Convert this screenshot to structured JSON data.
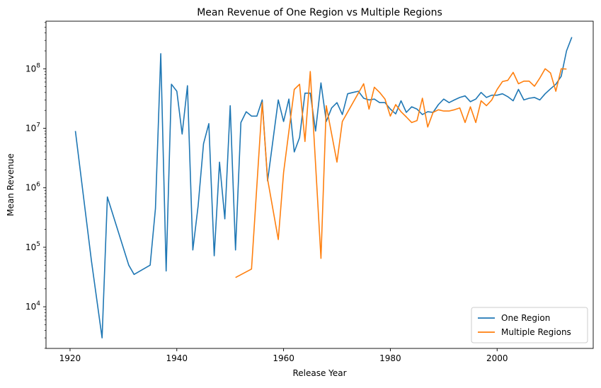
{
  "chart_data": {
    "type": "line",
    "title": "Mean Revenue of One Region vs Multiple Regions",
    "xlabel": "Release Year",
    "ylabel": "Mean Revenue",
    "xlim": [
      1915.5,
      2018
    ],
    "ylim_log10": [
      3.3,
      8.8
    ],
    "yscale": "log",
    "x_ticks": [
      1920,
      1940,
      1960,
      1980,
      2000
    ],
    "y_ticks": [
      {
        "exp": 4,
        "label": "4"
      },
      {
        "exp": 5,
        "label": "5"
      },
      {
        "exp": 6,
        "label": "6"
      },
      {
        "exp": 7,
        "label": "7"
      },
      {
        "exp": 8,
        "label": "8"
      }
    ],
    "y_tick_base": "10",
    "grid": false,
    "legend_position": "lower-right",
    "series": [
      {
        "name": "One Region",
        "color": "#1f77b4",
        "points": [
          [
            1921,
            9000000
          ],
          [
            1924,
            60000
          ],
          [
            1926,
            3000
          ],
          [
            1927,
            700000
          ],
          [
            1931,
            50000
          ],
          [
            1932,
            35000
          ],
          [
            1935,
            50000
          ],
          [
            1936,
            450000
          ],
          [
            1937,
            180000000
          ],
          [
            1938,
            40000
          ],
          [
            1939,
            55000000
          ],
          [
            1940,
            42000000
          ],
          [
            1941,
            8000000
          ],
          [
            1942,
            52000000
          ],
          [
            1943,
            90000
          ],
          [
            1944,
            500000
          ],
          [
            1945,
            5500000
          ],
          [
            1946,
            12000000
          ],
          [
            1947,
            72000
          ],
          [
            1948,
            2700000
          ],
          [
            1949,
            300000
          ],
          [
            1950,
            24000000
          ],
          [
            1951,
            90000
          ],
          [
            1952,
            12500000
          ],
          [
            1953,
            19000000
          ],
          [
            1954,
            16000000
          ],
          [
            1955,
            16000000
          ],
          [
            1956,
            30000000
          ],
          [
            1957,
            1300000
          ],
          [
            1959,
            30000000
          ],
          [
            1960,
            13000000
          ],
          [
            1961,
            31000000
          ],
          [
            1962,
            4000000
          ],
          [
            1963,
            7000000
          ],
          [
            1964,
            39000000
          ],
          [
            1965,
            39000000
          ],
          [
            1966,
            9000000
          ],
          [
            1967,
            58000000
          ],
          [
            1968,
            13000000
          ],
          [
            1969,
            22000000
          ],
          [
            1970,
            27000000
          ],
          [
            1971,
            17000000
          ],
          [
            1972,
            38000000
          ],
          [
            1973,
            40000000
          ],
          [
            1974,
            42000000
          ],
          [
            1975,
            32000000
          ],
          [
            1976,
            30000000
          ],
          [
            1977,
            31000000
          ],
          [
            1978,
            27000000
          ],
          [
            1979,
            27000000
          ],
          [
            1980,
            21000000
          ],
          [
            1981,
            17500000
          ],
          [
            1982,
            29000000
          ],
          [
            1983,
            18500000
          ],
          [
            1984,
            23000000
          ],
          [
            1985,
            21000000
          ],
          [
            1986,
            17000000
          ],
          [
            1987,
            19000000
          ],
          [
            1988,
            18500000
          ],
          [
            1989,
            25000000
          ],
          [
            1990,
            31000000
          ],
          [
            1991,
            27000000
          ],
          [
            1992,
            30000000
          ],
          [
            1993,
            33000000
          ],
          [
            1994,
            35000000
          ],
          [
            1995,
            28000000
          ],
          [
            1996,
            31000000
          ],
          [
            1997,
            40000000
          ],
          [
            1998,
            33000000
          ],
          [
            1999,
            36000000
          ],
          [
            2000,
            36000000
          ],
          [
            2001,
            38000000
          ],
          [
            2002,
            34000000
          ],
          [
            2003,
            29000000
          ],
          [
            2004,
            45000000
          ],
          [
            2005,
            30000000
          ],
          [
            2006,
            32000000
          ],
          [
            2007,
            33000000
          ],
          [
            2008,
            30000000
          ],
          [
            2009,
            38000000
          ],
          [
            2010,
            46000000
          ],
          [
            2011,
            55000000
          ],
          [
            2012,
            75000000
          ],
          [
            2013,
            200000000
          ],
          [
            2014,
            340000000
          ]
        ]
      },
      {
        "name": "Multiple Regions",
        "color": "#ff7f0e",
        "points": [
          [
            1951,
            31000
          ],
          [
            1954,
            43000
          ],
          [
            1956,
            27000000
          ],
          [
            1957,
            1400000
          ],
          [
            1959,
            135000
          ],
          [
            1960,
            1800000
          ],
          [
            1962,
            45000000
          ],
          [
            1963,
            55000000
          ],
          [
            1964,
            6000000
          ],
          [
            1965,
            90000000
          ],
          [
            1967,
            65000
          ],
          [
            1968,
            24000000
          ],
          [
            1970,
            2700000
          ],
          [
            1971,
            13000000
          ],
          [
            1975,
            56000000
          ],
          [
            1976,
            21000000
          ],
          [
            1977,
            49000000
          ],
          [
            1978,
            40000000
          ],
          [
            1979,
            31000000
          ],
          [
            1980,
            16000000
          ],
          [
            1981,
            25000000
          ],
          [
            1982,
            19000000
          ],
          [
            1983,
            15500000
          ],
          [
            1984,
            12500000
          ],
          [
            1985,
            13500000
          ],
          [
            1986,
            32000000
          ],
          [
            1987,
            10500000
          ],
          [
            1988,
            18500000
          ],
          [
            1989,
            20500000
          ],
          [
            1990,
            19500000
          ],
          [
            1991,
            19500000
          ],
          [
            1992,
            20500000
          ],
          [
            1993,
            22000000
          ],
          [
            1994,
            12500000
          ],
          [
            1995,
            23000000
          ],
          [
            1996,
            12500000
          ],
          [
            1997,
            29000000
          ],
          [
            1998,
            24000000
          ],
          [
            1999,
            30000000
          ],
          [
            2000,
            45000000
          ],
          [
            2001,
            61000000
          ],
          [
            2002,
            64000000
          ],
          [
            2003,
            87000000
          ],
          [
            2004,
            56000000
          ],
          [
            2005,
            62000000
          ],
          [
            2006,
            62000000
          ],
          [
            2007,
            51000000
          ],
          [
            2008,
            70000000
          ],
          [
            2009,
            100000000
          ],
          [
            2010,
            85000000
          ],
          [
            2011,
            42000000
          ],
          [
            2012,
            100000000
          ],
          [
            2013,
            99000000
          ]
        ]
      }
    ]
  }
}
